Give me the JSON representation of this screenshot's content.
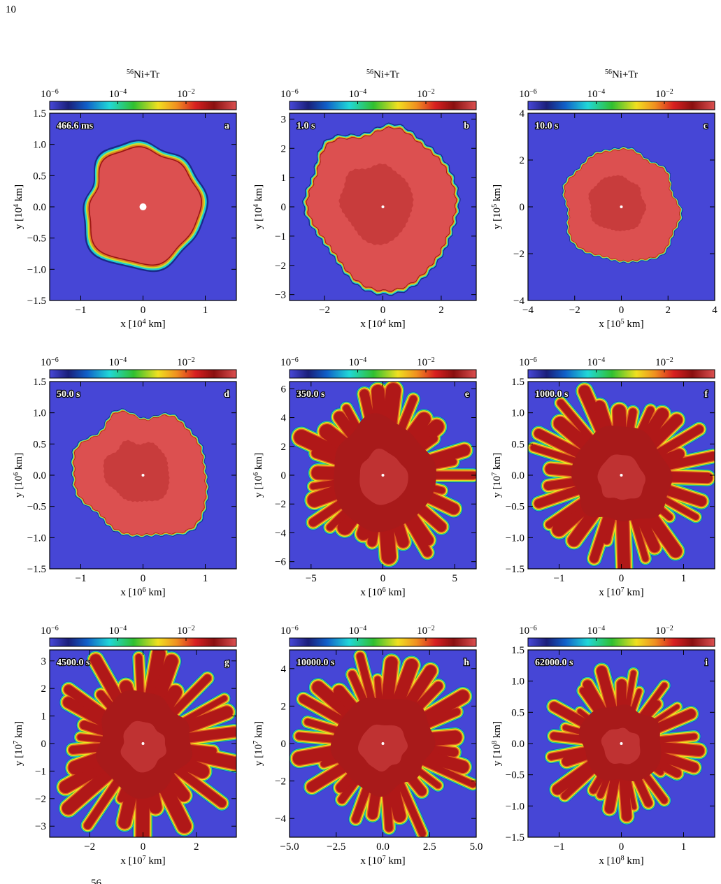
{
  "page_number": "10",
  "colorbar": {
    "label": {
      "mass": "56",
      "name": "Ni+Tr"
    },
    "clim": [
      1e-06,
      0.3
    ],
    "ticks": [
      {
        "value": 1e-06,
        "base": "10",
        "exponent": "−6"
      },
      {
        "value": 0.0001,
        "base": "10",
        "exponent": "−4"
      },
      {
        "value": 0.01,
        "base": "10",
        "exponent": "−2"
      }
    ]
  },
  "panels": [
    {
      "letter": "a",
      "time": "466.6 ms",
      "xlabel": {
        "text": "x [10",
        "exponent": "4",
        "unit": " km]"
      },
      "ylabel": {
        "text": "y [10",
        "exponent": "4",
        "unit": " km]"
      },
      "xlim": [
        -1.5,
        1.5
      ],
      "xticks": [
        {
          "value": -1,
          "label": "−1"
        },
        0,
        1
      ],
      "ylim": [
        -1.5,
        1.5
      ],
      "yticks": [
        {
          "value": -1.5,
          "label": "−1.5"
        },
        {
          "value": -1,
          "label": "−1.0"
        },
        {
          "value": -0.5,
          "label": "−0.5"
        },
        {
          "value": 0,
          "label": "0.0"
        },
        0.5,
        {
          "value": 1,
          "label": "1.0"
        },
        1.5
      ]
    },
    {
      "letter": "b",
      "time": "1.0 s",
      "xlabel": {
        "text": "x [10",
        "exponent": "4",
        "unit": " km]"
      },
      "ylabel": {
        "text": "y [10",
        "exponent": "4",
        "unit": " km]"
      },
      "xlim": [
        -3.2,
        3.2
      ],
      "xticks": [
        {
          "value": -2,
          "label": "−2"
        },
        0,
        2
      ],
      "ylim": [
        -3.2,
        3.2
      ],
      "yticks": [
        {
          "value": -3,
          "label": "−3"
        },
        {
          "value": -2,
          "label": "−2"
        },
        {
          "value": -1,
          "label": "−1"
        },
        0,
        1,
        2,
        3
      ]
    },
    {
      "letter": "c",
      "time": "10.0 s",
      "xlabel": {
        "text": "x [10",
        "exponent": "5",
        "unit": " km]"
      },
      "ylabel": {
        "text": "y [10",
        "exponent": "5",
        "unit": " km]"
      },
      "xlim": [
        -4,
        4
      ],
      "xticks": [
        {
          "value": -4,
          "label": "−4"
        },
        {
          "value": -2,
          "label": "−2"
        },
        0,
        2,
        4
      ],
      "ylim": [
        -4,
        4
      ],
      "yticks": [
        {
          "value": -4,
          "label": "−4"
        },
        {
          "value": -2,
          "label": "−2"
        },
        0,
        2,
        4
      ]
    },
    {
      "letter": "d",
      "time": "50.0 s",
      "xlabel": {
        "text": "x [10",
        "exponent": "6",
        "unit": " km]"
      },
      "ylabel": {
        "text": "y [10",
        "exponent": "6",
        "unit": " km]"
      },
      "xlim": [
        -1.5,
        1.5
      ],
      "xticks": [
        {
          "value": -1,
          "label": "−1"
        },
        0,
        1
      ],
      "ylim": [
        -1.5,
        1.5
      ],
      "yticks": [
        {
          "value": -1.5,
          "label": "−1.5"
        },
        {
          "value": -1,
          "label": "−1.0"
        },
        {
          "value": -0.5,
          "label": "−0.5"
        },
        {
          "value": 0,
          "label": "0.0"
        },
        0.5,
        {
          "value": 1,
          "label": "1.0"
        },
        1.5
      ]
    },
    {
      "letter": "e",
      "time": "350.0 s",
      "xlabel": {
        "text": "x [10",
        "exponent": "6",
        "unit": " km]"
      },
      "ylabel": {
        "text": "y [10",
        "exponent": "6",
        "unit": " km]"
      },
      "xlim": [
        -6.5,
        6.5
      ],
      "xticks": [
        {
          "value": -5,
          "label": "−5"
        },
        0,
        5
      ],
      "ylim": [
        -6.5,
        6.5
      ],
      "yticks": [
        {
          "value": -6,
          "label": "−6"
        },
        {
          "value": -4,
          "label": "−4"
        },
        {
          "value": -2,
          "label": "−2"
        },
        0,
        2,
        4,
        6
      ]
    },
    {
      "letter": "f",
      "time": "1000.0 s",
      "xlabel": {
        "text": "x [10",
        "exponent": "7",
        "unit": " km]"
      },
      "ylabel": {
        "text": "y [10",
        "exponent": "7",
        "unit": " km]"
      },
      "xlim": [
        -1.5,
        1.5
      ],
      "xticks": [
        {
          "value": -1,
          "label": "−1"
        },
        0,
        1
      ],
      "ylim": [
        -1.5,
        1.5
      ],
      "yticks": [
        {
          "value": -1.5,
          "label": "−1.5"
        },
        {
          "value": -1,
          "label": "−1.0"
        },
        {
          "value": -0.5,
          "label": "−0.5"
        },
        {
          "value": 0,
          "label": "0.0"
        },
        0.5,
        {
          "value": 1,
          "label": "1.0"
        },
        1.5
      ]
    },
    {
      "letter": "g",
      "time": "4500.0 s",
      "xlabel": {
        "text": "x [10",
        "exponent": "7",
        "unit": " km]"
      },
      "ylabel": {
        "text": "y [10",
        "exponent": "7",
        "unit": " km]"
      },
      "xlim": [
        -3.5,
        3.5
      ],
      "xticks": [
        {
          "value": -2,
          "label": "−2"
        },
        0,
        2
      ],
      "ylim": [
        -3.4,
        3.4
      ],
      "yticks": [
        {
          "value": -3,
          "label": "−3"
        },
        {
          "value": -2,
          "label": "−2"
        },
        {
          "value": -1,
          "label": "−1"
        },
        0,
        1,
        2,
        3
      ]
    },
    {
      "letter": "h",
      "time": "10000.0 s",
      "xlabel": {
        "text": "x [10",
        "exponent": "7",
        "unit": " km]"
      },
      "ylabel": {
        "text": "y [10",
        "exponent": "7",
        "unit": " km]"
      },
      "xlim": [
        -5,
        5
      ],
      "xticks": [
        {
          "value": -5,
          "label": "−5.0"
        },
        {
          "value": -2.5,
          "label": "−2.5"
        },
        {
          "value": 0,
          "label": "0.0"
        },
        2.5,
        {
          "value": 5,
          "label": "5.0"
        }
      ],
      "ylim": [
        -5,
        5
      ],
      "yticks": [
        {
          "value": -4,
          "label": "−4"
        },
        {
          "value": -2,
          "label": "−2"
        },
        0,
        2,
        4
      ]
    },
    {
      "letter": "i",
      "time": "62000.0 s",
      "xlabel": {
        "text": "x [10",
        "exponent": "8",
        "unit": " km]"
      },
      "ylabel": {
        "text": "y [10",
        "exponent": "8",
        "unit": " km]"
      },
      "xlim": [
        -1.5,
        1.5
      ],
      "xticks": [
        {
          "value": -1,
          "label": "−1"
        },
        0,
        1
      ],
      "ylim": [
        -1.5,
        1.5
      ],
      "yticks": [
        {
          "value": -1.5,
          "label": "−1.5"
        },
        {
          "value": -1,
          "label": "−1.0"
        },
        {
          "value": -0.5,
          "label": "−0.5"
        },
        {
          "value": 0,
          "label": "0.0"
        },
        0.5,
        {
          "value": 1,
          "label": "1.0"
        },
        1.5
      ]
    }
  ],
  "caption_fragment": "56"
}
